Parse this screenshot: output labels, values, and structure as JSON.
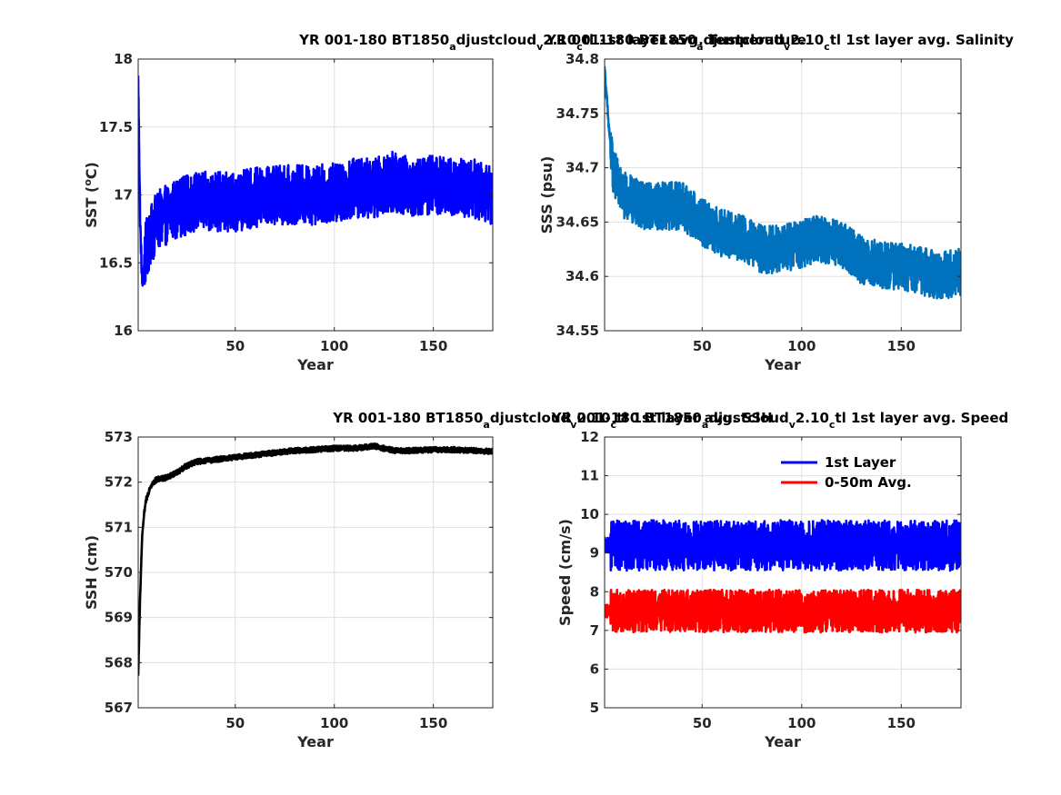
{
  "chart_data": [
    {
      "type": "line",
      "title_parts": [
        "YR 001-180 BT1850",
        "a",
        "djustcloud",
        "v",
        "2.10",
        "c",
        "tl 1st layer avg. Temperature"
      ],
      "xlabel": "Year",
      "ylabel": "SST (",
      "ylabel_sup": "o",
      "ylabel_tail": "C)",
      "xlim": [
        1,
        180
      ],
      "ylim": [
        16,
        18
      ],
      "xticks": [
        50,
        100,
        150
      ],
      "yticks": [
        16,
        16.5,
        17,
        17.5,
        18
      ],
      "yticklabels": [
        "16",
        "16.5",
        "17",
        "17.5",
        "18"
      ],
      "grid": true,
      "series": [
        {
          "color": "#0000ff",
          "shape": {
            "start": 17.85,
            "dip_year": 3,
            "dip": 16.35,
            "plateau_start": 16.85,
            "plateau_end": 17.05,
            "noise": 0.22
          },
          "x": [
            1,
            2,
            3,
            5,
            10,
            15,
            20,
            30,
            40,
            50,
            60,
            70,
            80,
            90,
            100,
            110,
            120,
            130,
            140,
            150,
            160,
            170,
            180
          ],
          "values": [
            17.85,
            16.8,
            16.35,
            16.6,
            16.8,
            16.85,
            16.9,
            16.95,
            16.95,
            16.95,
            16.98,
            17.0,
            17.0,
            17.0,
            17.02,
            17.05,
            17.05,
            17.1,
            17.05,
            17.08,
            17.05,
            17.05,
            17.0
          ]
        }
      ]
    },
    {
      "type": "line",
      "title_parts": [
        "YR 001-180 BT1850",
        "a",
        "djustcloud",
        "v",
        "2.10",
        "c",
        "tl 1st layer avg. Salinity"
      ],
      "xlabel": "Year",
      "ylabel": "SSS (psu)",
      "xlim": [
        1,
        180
      ],
      "ylim": [
        34.55,
        34.8
      ],
      "xticks": [
        50,
        100,
        150
      ],
      "yticks": [
        34.55,
        34.6,
        34.65,
        34.7,
        34.75,
        34.8
      ],
      "yticklabels": [
        "34.55",
        "34.6",
        "34.65",
        "34.7",
        "34.75",
        "34.8"
      ],
      "grid": true,
      "series": [
        {
          "color": "#0072bd",
          "shape": {
            "noise": 0.022
          },
          "x": [
            1,
            3,
            5,
            10,
            20,
            30,
            40,
            50,
            60,
            70,
            80,
            90,
            100,
            110,
            120,
            130,
            140,
            150,
            160,
            170,
            180
          ],
          "values": [
            34.79,
            34.74,
            34.7,
            34.675,
            34.665,
            34.665,
            34.665,
            34.65,
            34.64,
            34.635,
            34.625,
            34.625,
            34.63,
            34.635,
            34.63,
            34.615,
            34.61,
            34.61,
            34.605,
            34.6,
            34.605
          ]
        }
      ]
    },
    {
      "type": "line",
      "title_parts": [
        "YR 001-180 BT1850",
        "a",
        "djustcloud",
        "v",
        "2.10",
        "c",
        "tl 1st layer avg. SSH"
      ],
      "xlabel": "Year",
      "ylabel": "SSH (cm)",
      "xlim": [
        1,
        180
      ],
      "ylim": [
        567,
        573
      ],
      "xticks": [
        50,
        100,
        150
      ],
      "yticks": [
        567,
        568,
        569,
        570,
        571,
        572,
        573
      ],
      "yticklabels": [
        "567",
        "568",
        "569",
        "570",
        "571",
        "572",
        "573"
      ],
      "grid": true,
      "series": [
        {
          "color": "#000000",
          "shape": {
            "noise": 0.06
          },
          "x": [
            1,
            2,
            3,
            4,
            5,
            7,
            10,
            15,
            20,
            25,
            30,
            40,
            50,
            60,
            70,
            80,
            90,
            100,
            110,
            120,
            130,
            140,
            150,
            160,
            170,
            180
          ],
          "values": [
            567.7,
            569.5,
            570.8,
            571.3,
            571.6,
            571.9,
            572.05,
            572.1,
            572.2,
            572.35,
            572.45,
            572.5,
            572.55,
            572.6,
            572.65,
            572.7,
            572.72,
            572.75,
            572.75,
            572.8,
            572.7,
            572.7,
            572.72,
            572.72,
            572.7,
            572.68
          ]
        }
      ]
    },
    {
      "type": "line",
      "title_parts": [
        "YR 001-180 BT1850",
        "a",
        "djustcloud",
        "v",
        "2.10",
        "c",
        "tl 1st layer avg. Speed"
      ],
      "xlabel": "Year",
      "ylabel": "Speed (cm/s)",
      "xlim": [
        1,
        180
      ],
      "ylim": [
        5,
        12
      ],
      "xticks": [
        50,
        100,
        150
      ],
      "yticks": [
        5,
        6,
        7,
        8,
        9,
        10,
        11,
        12
      ],
      "yticklabels": [
        "5",
        "6",
        "7",
        "8",
        "9",
        "10",
        "11",
        "12"
      ],
      "grid": true,
      "legend_position": "top-right",
      "series": [
        {
          "name": "1st Layer",
          "color": "#0000ff",
          "shape": {
            "noise": 0.65
          },
          "x": [
            1,
            180
          ],
          "values": [
            9.2,
            9.2
          ]
        },
        {
          "name": "0-50m Avg.",
          "color": "#ff0000",
          "shape": {
            "noise": 0.55
          },
          "x": [
            1,
            180
          ],
          "values": [
            7.5,
            7.5
          ]
        }
      ]
    }
  ]
}
